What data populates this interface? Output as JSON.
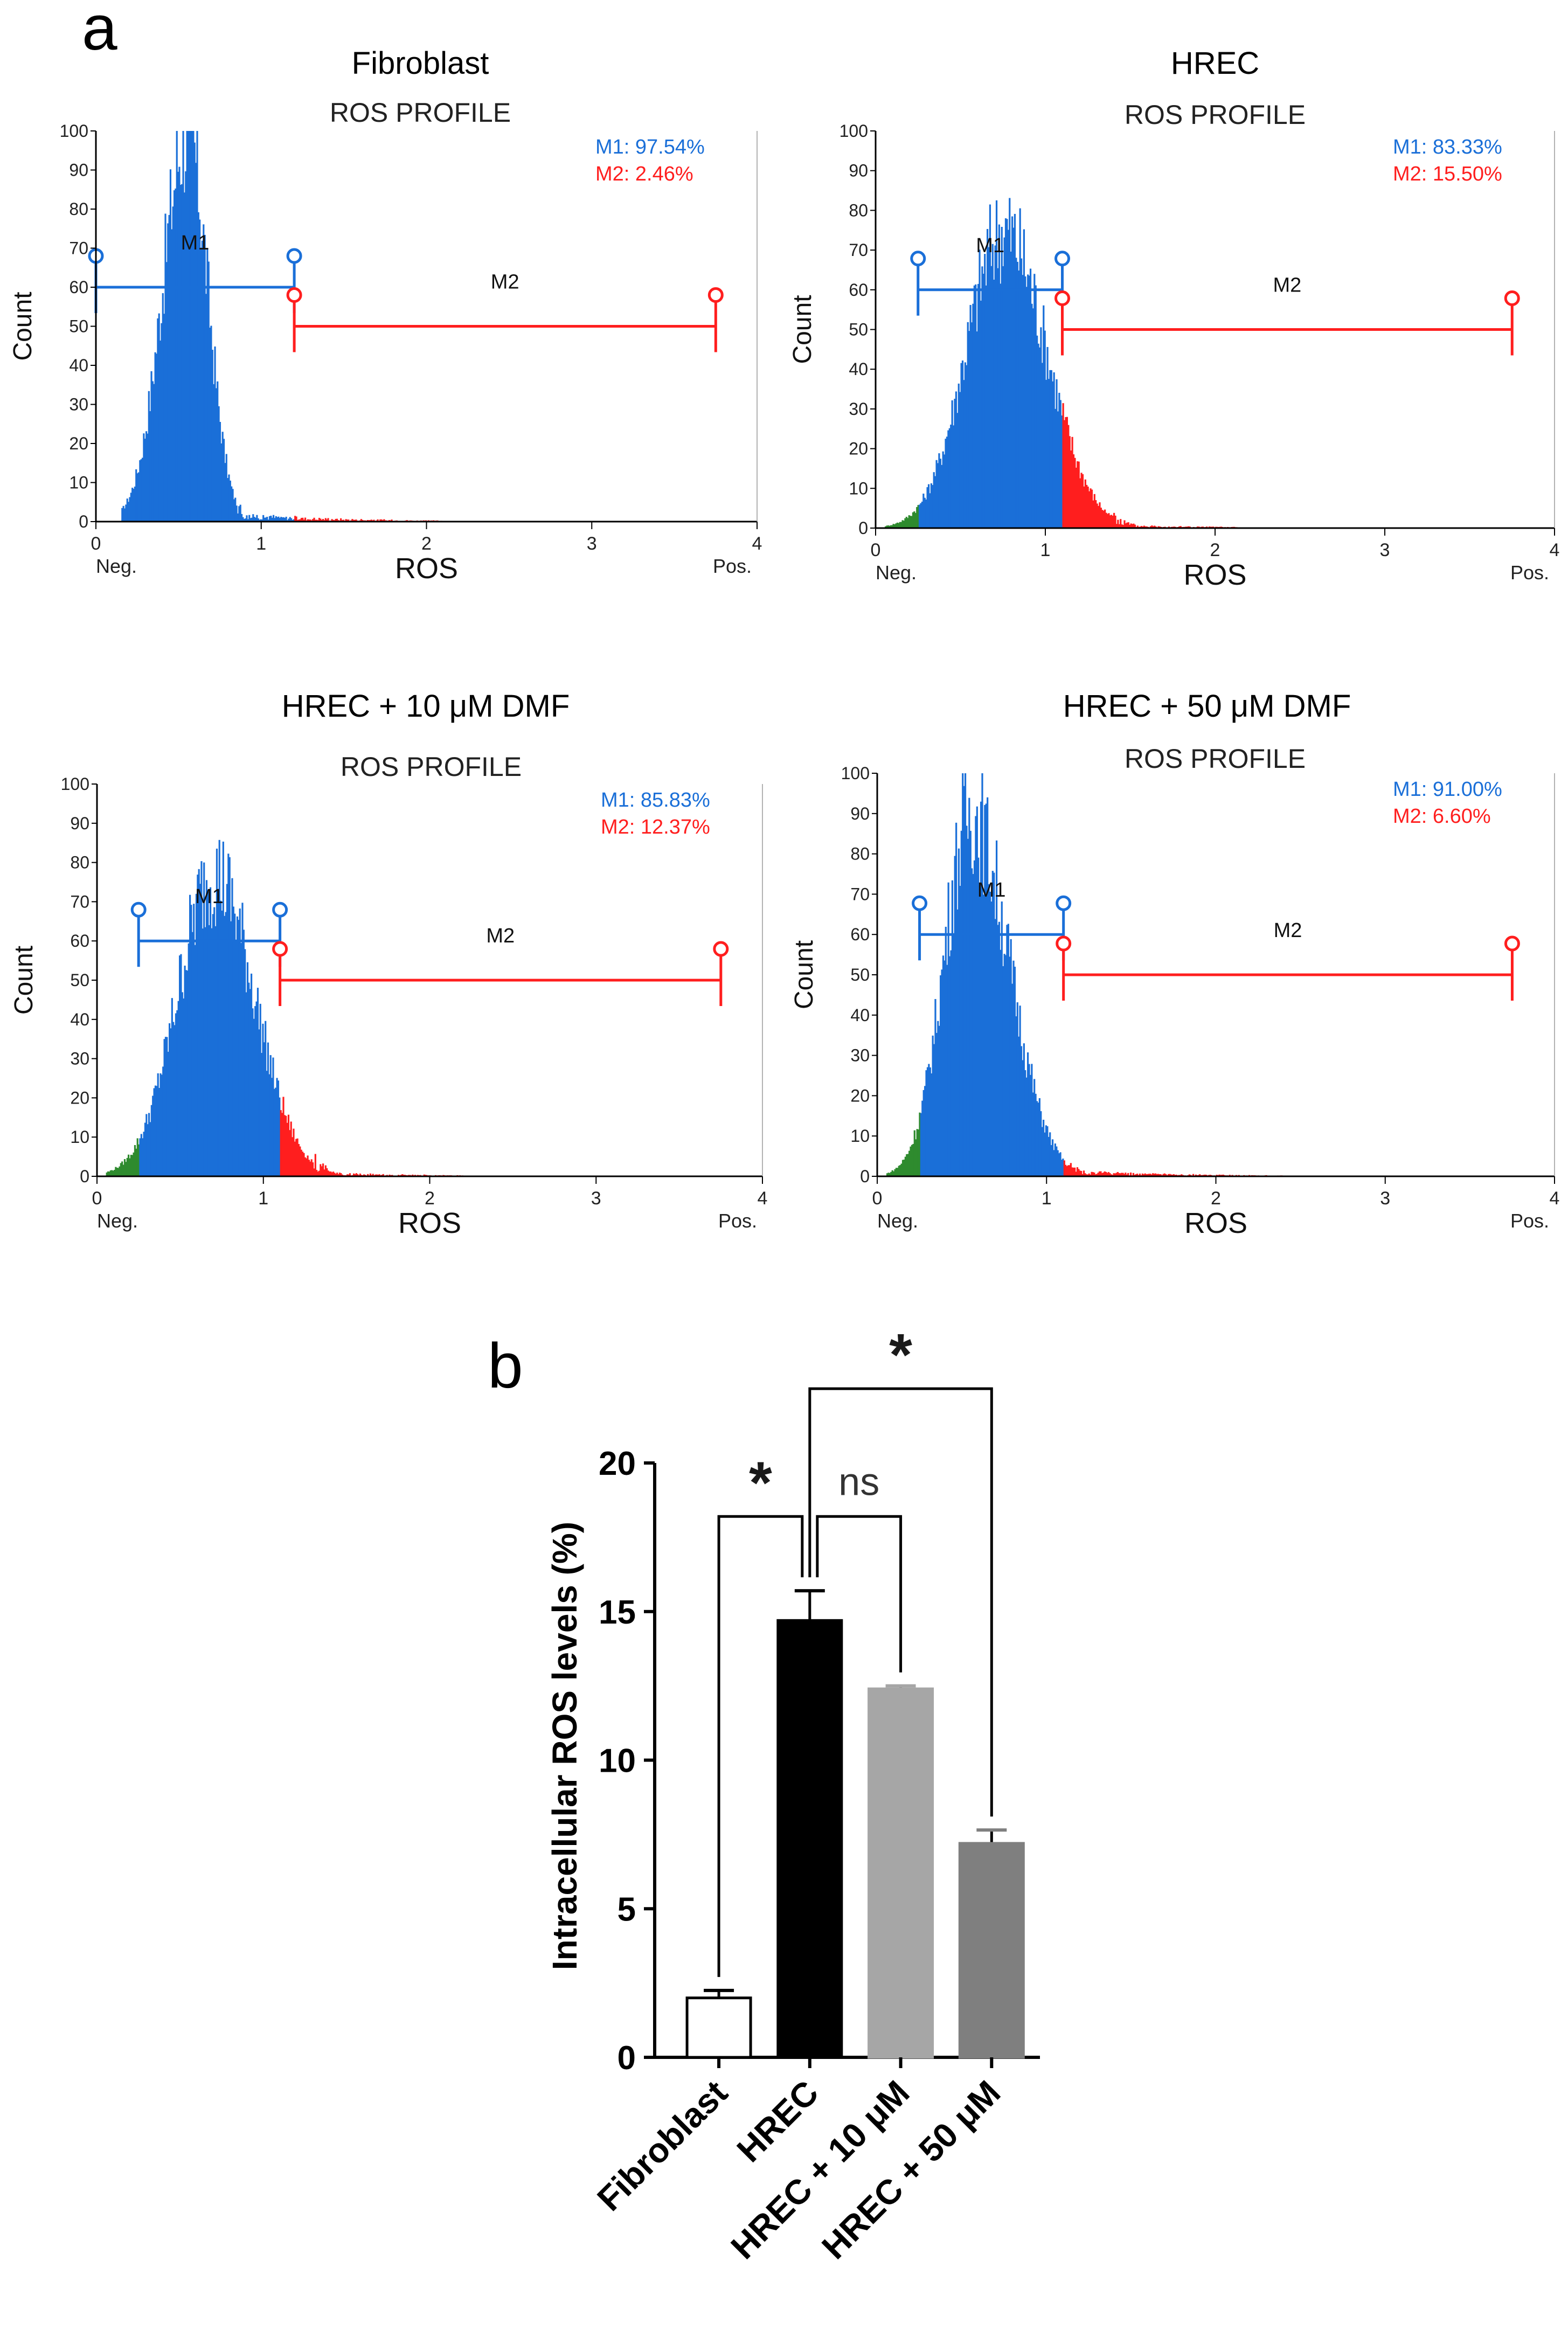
{
  "panel_a": {
    "label": "a",
    "common": {
      "subtitle": "ROS PROFILE",
      "y_axis_label": "Count",
      "x_axis_label": "ROS",
      "neg_label": "Neg.",
      "pos_label": "Pos.",
      "y_ticks": [
        "0",
        "10",
        "20",
        "30",
        "40",
        "50",
        "60",
        "70",
        "80",
        "90",
        "100"
      ],
      "x_ticks": [
        "0",
        "1",
        "2",
        "3",
        "4"
      ],
      "gate1_label": "M1",
      "gate2_label": "M2",
      "colors": {
        "m1": "#1a6fd8",
        "m2": "#ff1e1e",
        "neg": "#2e8b2e",
        "axis": "#000000",
        "text": "#222222"
      }
    }
  },
  "chart_data": [
    {
      "type": "area",
      "title": "Fibroblast",
      "subtitle": "ROS PROFILE",
      "xlabel": "ROS",
      "ylabel": "Count",
      "xlim": [
        0,
        4
      ],
      "ylim": [
        0,
        100
      ],
      "stats": {
        "m1_label": "M1: 97.54%",
        "m2_label": "M2: 2.46%",
        "m1": 97.54,
        "m2": 2.46
      },
      "gates": {
        "m1_range": [
          0.0,
          1.2
        ],
        "m1_level": 60,
        "m2_range": [
          1.2,
          3.75
        ],
        "m2_level": 50
      },
      "histogram": {
        "peak_x": 0.55,
        "peak_y": 100,
        "sigma_left": 0.15,
        "sigma_right": 0.12,
        "tail_level": 2.5,
        "tail_end": 2.1,
        "green_level": 0,
        "start_x": 0.15
      }
    },
    {
      "type": "area",
      "title": "HREC",
      "subtitle": "ROS PROFILE",
      "xlabel": "ROS",
      "ylabel": "Count",
      "xlim": [
        0,
        4
      ],
      "ylim": [
        0,
        100
      ],
      "stats": {
        "m1_label": "M1: 83.33%",
        "m2_label": "M2: 15.50%",
        "m1": 83.33,
        "m2": 15.5
      },
      "gates": {
        "m1_range": [
          0.25,
          1.1
        ],
        "m1_level": 60,
        "m2_range": [
          1.1,
          3.75
        ],
        "m2_level": 50
      },
      "histogram": {
        "peak_x": 0.75,
        "peak_y": 75,
        "sigma_left": 0.22,
        "sigma_right": 0.25,
        "tail_level": 2,
        "tail_end": 2.15,
        "green_level": 5,
        "start_x": 0.05
      }
    },
    {
      "type": "area",
      "title": "HREC + 10 μM DMF",
      "subtitle": "ROS PROFILE",
      "xlabel": "ROS",
      "ylabel": "Count",
      "xlim": [
        0,
        4
      ],
      "ylim": [
        0,
        100
      ],
      "stats": {
        "m1_label": "M1: 85.83%",
        "m2_label": "M2: 12.37%",
        "m1": 85.83,
        "m2": 12.37
      },
      "gates": {
        "m1_range": [
          0.25,
          1.1
        ],
        "m1_level": 60,
        "m2_range": [
          1.1,
          3.75
        ],
        "m2_level": 50
      },
      "histogram": {
        "peak_x": 0.7,
        "peak_y": 77,
        "sigma_left": 0.22,
        "sigma_right": 0.24,
        "tail_level": 2,
        "tail_end": 2.2,
        "green_level": 7,
        "start_x": 0.05
      }
    },
    {
      "type": "area",
      "title": "HREC + 50 μM DMF",
      "subtitle": "ROS PROFILE",
      "xlabel": "ROS",
      "ylabel": "Count",
      "xlim": [
        0,
        4
      ],
      "ylim": [
        0,
        100
      ],
      "stats": {
        "m1_label": "M1: 91.00%",
        "m2_label": "M2: 6.60%",
        "m1": 91.0,
        "m2": 6.6
      },
      "gates": {
        "m1_range": [
          0.25,
          1.1
        ],
        "m1_level": 60,
        "m2_range": [
          1.1,
          3.75
        ],
        "m2_level": 50
      },
      "histogram": {
        "peak_x": 0.55,
        "peak_y": 90,
        "sigma_left": 0.16,
        "sigma_right": 0.22,
        "tail_level": 3,
        "tail_end": 2.4,
        "green_level": 6,
        "start_x": 0.05
      }
    },
    {
      "type": "bar",
      "panel_label": "b",
      "title": "",
      "xlabel": "",
      "ylabel": "Intracellular ROS levels (%)",
      "ylim": [
        0,
        20
      ],
      "yticks": [
        "0",
        "5",
        "10",
        "15",
        "20"
      ],
      "categories": [
        "Fibroblast",
        "HREC",
        "HREC + 10 μM",
        "HREC + 50 μM"
      ],
      "values": [
        2.0,
        14.7,
        12.4,
        7.2
      ],
      "errors": [
        0.25,
        1.0,
        0.1,
        0.45
      ],
      "bar_colors": [
        "#ffffff",
        "#000000",
        "#a6a6a6",
        "#7f7f7f"
      ],
      "significance": [
        {
          "pair": [
            0,
            1
          ],
          "label": "*",
          "y": 18.2
        },
        {
          "pair": [
            1,
            2
          ],
          "label": "ns",
          "y": 18.2
        },
        {
          "pair": [
            1,
            3
          ],
          "label": "*",
          "y": 22.5
        }
      ]
    }
  ]
}
